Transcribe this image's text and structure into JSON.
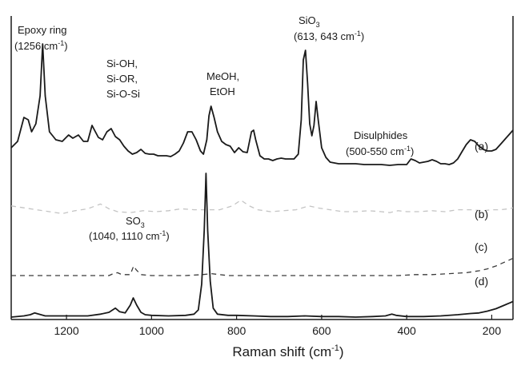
{
  "chart_data": {
    "type": "line",
    "title": "",
    "xlabel_main": "Raman shift (cm",
    "xlabel_sup": "-1",
    "xlabel_close": ")",
    "ylabel": "",
    "xlim": [
      1330,
      150
    ],
    "x_reversed": true,
    "grid": false,
    "ticks": [
      {
        "value": 1200,
        "label": "1200"
      },
      {
        "value": 1000,
        "label": "1000"
      },
      {
        "value": 800,
        "label": "800"
      },
      {
        "value": 600,
        "label": "600"
      },
      {
        "value": 400,
        "label": "400"
      },
      {
        "value": 200,
        "label": "200"
      }
    ],
    "series": [
      {
        "name": "(a)",
        "color": "#1a1a1a",
        "style": "solid",
        "points": [
          [
            1330,
            0.2
          ],
          [
            1315,
            0.28
          ],
          [
            1300,
            0.58
          ],
          [
            1290,
            0.55
          ],
          [
            1282,
            0.4
          ],
          [
            1272,
            0.5
          ],
          [
            1262,
            0.85
          ],
          [
            1256,
            1.5
          ],
          [
            1250,
            0.85
          ],
          [
            1240,
            0.4
          ],
          [
            1225,
            0.3
          ],
          [
            1210,
            0.28
          ],
          [
            1195,
            0.36
          ],
          [
            1185,
            0.32
          ],
          [
            1172,
            0.36
          ],
          [
            1160,
            0.28
          ],
          [
            1150,
            0.28
          ],
          [
            1140,
            0.48
          ],
          [
            1134,
            0.42
          ],
          [
            1125,
            0.33
          ],
          [
            1115,
            0.3
          ],
          [
            1105,
            0.4
          ],
          [
            1095,
            0.44
          ],
          [
            1085,
            0.34
          ],
          [
            1075,
            0.3
          ],
          [
            1065,
            0.22
          ],
          [
            1055,
            0.16
          ],
          [
            1045,
            0.12
          ],
          [
            1035,
            0.14
          ],
          [
            1025,
            0.18
          ],
          [
            1015,
            0.13
          ],
          [
            1005,
            0.12
          ],
          [
            995,
            0.12
          ],
          [
            985,
            0.1
          ],
          [
            975,
            0.1
          ],
          [
            965,
            0.1
          ],
          [
            955,
            0.09
          ],
          [
            945,
            0.12
          ],
          [
            935,
            0.16
          ],
          [
            925,
            0.26
          ],
          [
            915,
            0.4
          ],
          [
            905,
            0.4
          ],
          [
            895,
            0.3
          ],
          [
            885,
            0.16
          ],
          [
            878,
            0.12
          ],
          [
            870,
            0.3
          ],
          [
            865,
            0.6
          ],
          [
            860,
            0.72
          ],
          [
            853,
            0.58
          ],
          [
            845,
            0.4
          ],
          [
            835,
            0.28
          ],
          [
            825,
            0.24
          ],
          [
            815,
            0.22
          ],
          [
            805,
            0.14
          ],
          [
            795,
            0.2
          ],
          [
            785,
            0.15
          ],
          [
            775,
            0.14
          ],
          [
            765,
            0.4
          ],
          [
            760,
            0.42
          ],
          [
            755,
            0.3
          ],
          [
            745,
            0.1
          ],
          [
            735,
            0.06
          ],
          [
            725,
            0.06
          ],
          [
            715,
            0.04
          ],
          [
            705,
            0.06
          ],
          [
            695,
            0.07
          ],
          [
            685,
            0.06
          ],
          [
            675,
            0.06
          ],
          [
            665,
            0.06
          ],
          [
            655,
            0.12
          ],
          [
            648,
            0.55
          ],
          [
            643,
            1.3
          ],
          [
            638,
            1.42
          ],
          [
            633,
            1.0
          ],
          [
            628,
            0.5
          ],
          [
            623,
            0.35
          ],
          [
            618,
            0.48
          ],
          [
            613,
            0.78
          ],
          [
            608,
            0.55
          ],
          [
            600,
            0.2
          ],
          [
            590,
            0.08
          ],
          [
            580,
            0.02
          ],
          [
            570,
            0.01
          ],
          [
            560,
            0.0
          ],
          [
            550,
            0.0
          ],
          [
            540,
            0.0
          ],
          [
            520,
            0.0
          ],
          [
            500,
            -0.01
          ],
          [
            480,
            -0.01
          ],
          [
            460,
            -0.01
          ],
          [
            440,
            -0.02
          ],
          [
            420,
            -0.01
          ],
          [
            400,
            -0.01
          ],
          [
            390,
            0.06
          ],
          [
            380,
            0.04
          ],
          [
            370,
            0.01
          ],
          [
            360,
            0.02
          ],
          [
            350,
            0.03
          ],
          [
            340,
            0.05
          ],
          [
            330,
            0.03
          ],
          [
            320,
            0.0
          ],
          [
            310,
            0.0
          ],
          [
            300,
            -0.01
          ],
          [
            290,
            0.01
          ],
          [
            280,
            0.06
          ],
          [
            270,
            0.15
          ],
          [
            260,
            0.24
          ],
          [
            250,
            0.3
          ],
          [
            240,
            0.28
          ],
          [
            230,
            0.22
          ],
          [
            220,
            0.18
          ],
          [
            210,
            0.16
          ],
          [
            200,
            0.16
          ],
          [
            190,
            0.18
          ],
          [
            180,
            0.24
          ],
          [
            170,
            0.3
          ],
          [
            160,
            0.36
          ],
          [
            150,
            0.42
          ]
        ]
      },
      {
        "name": "(b)",
        "color": "#c4c4c4",
        "style": "dashed",
        "points": [
          [
            1330,
            0.06
          ],
          [
            1300,
            0.04
          ],
          [
            1270,
            0.02
          ],
          [
            1240,
            0.0
          ],
          [
            1210,
            -0.02
          ],
          [
            1180,
            0.01
          ],
          [
            1150,
            0.03
          ],
          [
            1120,
            0.08
          ],
          [
            1100,
            0.03
          ],
          [
            1080,
            0.0
          ],
          [
            1050,
            -0.01
          ],
          [
            1020,
            0.01
          ],
          [
            990,
            0.0
          ],
          [
            960,
            0.01
          ],
          [
            930,
            0.03
          ],
          [
            900,
            0.02
          ],
          [
            870,
            0.02
          ],
          [
            840,
            0.02
          ],
          [
            810,
            0.06
          ],
          [
            790,
            0.12
          ],
          [
            770,
            0.06
          ],
          [
            750,
            0.02
          ],
          [
            720,
            0.0
          ],
          [
            690,
            0.01
          ],
          [
            660,
            0.02
          ],
          [
            630,
            0.06
          ],
          [
            610,
            0.04
          ],
          [
            580,
            0.02
          ],
          [
            550,
            0.0
          ],
          [
            520,
            0.0
          ],
          [
            490,
            0.01
          ],
          [
            460,
            0.0
          ],
          [
            440,
            -0.01
          ],
          [
            420,
            0.01
          ],
          [
            400,
            0.0
          ],
          [
            370,
            0.0
          ],
          [
            340,
            0.01
          ],
          [
            310,
            0.0
          ],
          [
            280,
            0.02
          ],
          [
            250,
            0.02
          ],
          [
            220,
            0.01
          ],
          [
            200,
            0.02
          ],
          [
            180,
            0.02
          ],
          [
            160,
            0.03
          ],
          [
            150,
            0.04
          ]
        ]
      },
      {
        "name": "(c)",
        "color": "#3a3a3a",
        "style": "dashed",
        "points": [
          [
            1330,
            0.0
          ],
          [
            1300,
            0.0
          ],
          [
            1260,
            0.0
          ],
          [
            1220,
            0.0
          ],
          [
            1180,
            0.0
          ],
          [
            1140,
            0.0
          ],
          [
            1100,
            0.0
          ],
          [
            1090,
            0.02
          ],
          [
            1080,
            0.03
          ],
          [
            1070,
            0.01
          ],
          [
            1050,
            0.01
          ],
          [
            1042,
            0.1
          ],
          [
            1036,
            0.06
          ],
          [
            1025,
            0.01
          ],
          [
            1000,
            0.0
          ],
          [
            960,
            0.0
          ],
          [
            920,
            0.0
          ],
          [
            880,
            0.01
          ],
          [
            860,
            0.02
          ],
          [
            820,
            0.0
          ],
          [
            780,
            0.0
          ],
          [
            740,
            0.0
          ],
          [
            700,
            0.0
          ],
          [
            660,
            0.0
          ],
          [
            620,
            0.0
          ],
          [
            580,
            0.0
          ],
          [
            540,
            0.0
          ],
          [
            500,
            0.0
          ],
          [
            460,
            0.0
          ],
          [
            420,
            0.0
          ],
          [
            380,
            0.01
          ],
          [
            340,
            0.01
          ],
          [
            300,
            0.02
          ],
          [
            260,
            0.03
          ],
          [
            230,
            0.05
          ],
          [
            210,
            0.07
          ],
          [
            190,
            0.1
          ],
          [
            170,
            0.14
          ],
          [
            150,
            0.18
          ]
        ]
      },
      {
        "name": "(d)",
        "color": "#1a1a1a",
        "style": "solid",
        "points": [
          [
            1330,
            0.0
          ],
          [
            1300,
            0.02
          ],
          [
            1285,
            0.04
          ],
          [
            1275,
            0.07
          ],
          [
            1265,
            0.05
          ],
          [
            1250,
            0.02
          ],
          [
            1200,
            0.02
          ],
          [
            1150,
            0.02
          ],
          [
            1120,
            0.05
          ],
          [
            1100,
            0.08
          ],
          [
            1085,
            0.15
          ],
          [
            1075,
            0.09
          ],
          [
            1062,
            0.07
          ],
          [
            1050,
            0.2
          ],
          [
            1043,
            0.32
          ],
          [
            1035,
            0.2
          ],
          [
            1025,
            0.08
          ],
          [
            1015,
            0.04
          ],
          [
            1000,
            0.03
          ],
          [
            960,
            0.02
          ],
          [
            920,
            0.03
          ],
          [
            900,
            0.05
          ],
          [
            890,
            0.12
          ],
          [
            882,
            0.55
          ],
          [
            876,
            1.45
          ],
          [
            872,
            2.4
          ],
          [
            868,
            1.45
          ],
          [
            862,
            0.6
          ],
          [
            855,
            0.15
          ],
          [
            845,
            0.05
          ],
          [
            820,
            0.03
          ],
          [
            800,
            0.03
          ],
          [
            760,
            0.02
          ],
          [
            720,
            0.01
          ],
          [
            680,
            0.01
          ],
          [
            640,
            0.02
          ],
          [
            600,
            0.01
          ],
          [
            560,
            0.01
          ],
          [
            520,
            0.0
          ],
          [
            480,
            0.01
          ],
          [
            450,
            0.02
          ],
          [
            435,
            0.05
          ],
          [
            425,
            0.03
          ],
          [
            400,
            0.01
          ],
          [
            360,
            0.01
          ],
          [
            320,
            0.02
          ],
          [
            280,
            0.04
          ],
          [
            250,
            0.06
          ],
          [
            230,
            0.07
          ],
          [
            210,
            0.1
          ],
          [
            190,
            0.14
          ],
          [
            170,
            0.2
          ],
          [
            150,
            0.26
          ]
        ]
      }
    ],
    "annotations": [
      {
        "id": "epoxy",
        "lines": [
          "Epoxy ring",
          "(1256 cm",
          "-1",
          ")"
        ]
      },
      {
        "id": "sioh",
        "lines": [
          "Si-OH,",
          "Si-OR,",
          "Si-O-Si"
        ]
      },
      {
        "id": "meoh",
        "lines": [
          "MeOH,",
          "EtOH"
        ]
      },
      {
        "id": "sio3",
        "main": "SiO",
        "sub": "3",
        "line2": "(613, 643 cm",
        "sup": "-1",
        "close": ")"
      },
      {
        "id": "disulph",
        "lines": [
          "Disulphides",
          "(500-550 cm",
          "-1",
          ")"
        ]
      },
      {
        "id": "so3",
        "main": "SO",
        "sub": "3",
        "line2": "(1040, 1110 cm",
        "sup": "-1",
        "close": ")"
      }
    ]
  }
}
